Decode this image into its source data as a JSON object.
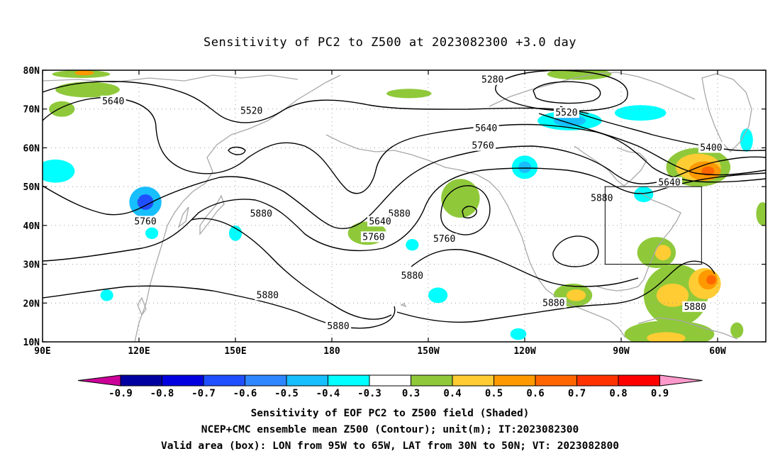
{
  "title": "Sensitivity of PC2 to Z500 at 2023082300 +3.0 day",
  "captions": [
    "Sensitivity of EOF PC2 to Z500 field (Shaded)",
    "NCEP+CMC ensemble mean Z500 (Contour); unit(m); IT:2023082300",
    "Valid area (box): LON from 95W to 65W, LAT from 30N to 50N; VT: 2023082800"
  ],
  "map": {
    "lon_range": [
      90,
      315
    ],
    "lat_range": [
      10,
      80
    ],
    "lat_ticks": [
      {
        "lat": 80,
        "label": "80N"
      },
      {
        "lat": 70,
        "label": "70N"
      },
      {
        "lat": 60,
        "label": "60N"
      },
      {
        "lat": 50,
        "label": "50N"
      },
      {
        "lat": 40,
        "label": "40N"
      },
      {
        "lat": 30,
        "label": "30N"
      },
      {
        "lat": 20,
        "label": "20N"
      },
      {
        "lat": 10,
        "label": "10N"
      }
    ],
    "lon_ticks": [
      {
        "lon": 90,
        "label": "90E"
      },
      {
        "lon": 120,
        "label": "120E"
      },
      {
        "lon": 150,
        "label": "150E"
      },
      {
        "lon": 180,
        "label": "180"
      },
      {
        "lon": 210,
        "label": "150W"
      },
      {
        "lon": 240,
        "label": "120W"
      },
      {
        "lon": 270,
        "label": "90W"
      },
      {
        "lon": 300,
        "label": "60W"
      }
    ],
    "valid_box": {
      "lon_min": 265,
      "lon_max": 295,
      "lat_min": 30,
      "lat_max": 50
    },
    "contour_labels": [
      {
        "text": "5640",
        "lon": 112,
        "lat": 72
      },
      {
        "text": "5520",
        "lon": 155,
        "lat": 69.5
      },
      {
        "text": "5520",
        "lon": 253,
        "lat": 69
      },
      {
        "text": "5280",
        "lon": 230,
        "lat": 77.5
      },
      {
        "text": "5640",
        "lon": 228,
        "lat": 65
      },
      {
        "text": "5760",
        "lon": 227,
        "lat": 60.5
      },
      {
        "text": "5400",
        "lon": 298,
        "lat": 60
      },
      {
        "text": "5640",
        "lon": 285,
        "lat": 51
      },
      {
        "text": "5880",
        "lon": 264,
        "lat": 47
      },
      {
        "text": "5880",
        "lon": 201,
        "lat": 43
      },
      {
        "text": "5640",
        "lon": 195,
        "lat": 41
      },
      {
        "text": "5760",
        "lon": 193,
        "lat": 37
      },
      {
        "text": "5760",
        "lon": 215,
        "lat": 36.5
      },
      {
        "text": "5880",
        "lon": 158,
        "lat": 43
      },
      {
        "text": "5760",
        "lon": 122,
        "lat": 41
      },
      {
        "text": "5880",
        "lon": 205,
        "lat": 27
      },
      {
        "text": "5880",
        "lon": 249,
        "lat": 20
      },
      {
        "text": "5880",
        "lon": 293,
        "lat": 19
      },
      {
        "text": "5880",
        "lon": 182,
        "lat": 14
      },
      {
        "text": "5880",
        "lon": 160,
        "lat": 22
      }
    ],
    "shading": [
      {
        "lon": 94,
        "lat": 54,
        "rx": 6,
        "ry": 3,
        "value": -0.4
      },
      {
        "lon": 122,
        "lat": 46,
        "rx": 5,
        "ry": 4,
        "value": -0.5
      },
      {
        "lon": 122,
        "lat": 46,
        "rx": 2.5,
        "ry": 2,
        "value": -0.7
      },
      {
        "lon": 124,
        "lat": 38,
        "rx": 2,
        "ry": 1.5,
        "value": -0.4
      },
      {
        "lon": 240,
        "lat": 55,
        "rx": 4,
        "ry": 3,
        "value": -0.4
      },
      {
        "lon": 240,
        "lat": 55,
        "rx": 2,
        "ry": 1.5,
        "value": -0.5
      },
      {
        "lon": 254,
        "lat": 67,
        "rx": 10,
        "ry": 2.5,
        "value": -0.4
      },
      {
        "lon": 254,
        "lat": 67,
        "rx": 5,
        "ry": 1.5,
        "value": -0.5
      },
      {
        "lon": 276,
        "lat": 69,
        "rx": 8,
        "ry": 2,
        "value": -0.4
      },
      {
        "lon": 309,
        "lat": 62,
        "rx": 2,
        "ry": 3,
        "value": -0.4
      },
      {
        "lon": 277,
        "lat": 48,
        "rx": 3,
        "ry": 2,
        "value": -0.4
      },
      {
        "lon": 205,
        "lat": 35,
        "rx": 2,
        "ry": 1.5,
        "value": -0.4
      },
      {
        "lon": 213,
        "lat": 22,
        "rx": 3,
        "ry": 2,
        "value": -0.4
      },
      {
        "lon": 110,
        "lat": 22,
        "rx": 2,
        "ry": 1.5,
        "value": -0.4
      },
      {
        "lon": 238,
        "lat": 12,
        "rx": 2.5,
        "ry": 1.5,
        "value": -0.4
      },
      {
        "lon": 150,
        "lat": 38,
        "rx": 2,
        "ry": 2,
        "value": -0.4
      },
      {
        "lon": 104,
        "lat": 75,
        "rx": 10,
        "ry": 2,
        "value": 0.3
      },
      {
        "lon": 96,
        "lat": 70,
        "rx": 4,
        "ry": 2,
        "value": 0.3
      },
      {
        "lon": 102,
        "lat": 79,
        "rx": 9,
        "ry": 1,
        "value": 0.3
      },
      {
        "lon": 103,
        "lat": 79.3,
        "rx": 3,
        "ry": 0.6,
        "value": 0.5
      },
      {
        "lon": 204,
        "lat": 74,
        "rx": 7,
        "ry": 1.2,
        "value": 0.3
      },
      {
        "lon": 220,
        "lat": 47,
        "rx": 6,
        "ry": 5,
        "value": 0.3
      },
      {
        "lon": 191,
        "lat": 38,
        "rx": 6,
        "ry": 3,
        "value": 0.3
      },
      {
        "lon": 257,
        "lat": 79,
        "rx": 10,
        "ry": 1.5,
        "value": 0.3
      },
      {
        "lon": 294,
        "lat": 55,
        "rx": 10,
        "ry": 5,
        "value": 0.3
      },
      {
        "lon": 294,
        "lat": 55,
        "rx": 7,
        "ry": 3.5,
        "value": 0.4
      },
      {
        "lon": 296,
        "lat": 54,
        "rx": 5,
        "ry": 2.5,
        "value": 0.5
      },
      {
        "lon": 297,
        "lat": 54,
        "rx": 2,
        "ry": 1.2,
        "value": 0.6
      },
      {
        "lon": 314,
        "lat": 43,
        "rx": 2,
        "ry": 3,
        "value": 0.3
      },
      {
        "lon": 281,
        "lat": 33,
        "rx": 6,
        "ry": 4,
        "value": 0.3
      },
      {
        "lon": 283,
        "lat": 33,
        "rx": 2.5,
        "ry": 2,
        "value": 0.4
      },
      {
        "lon": 287,
        "lat": 22,
        "rx": 10,
        "ry": 8,
        "value": 0.3
      },
      {
        "lon": 286,
        "lat": 22,
        "rx": 5,
        "ry": 3,
        "value": 0.4
      },
      {
        "lon": 296,
        "lat": 25,
        "rx": 5,
        "ry": 4,
        "value": 0.4
      },
      {
        "lon": 297,
        "lat": 26,
        "rx": 3,
        "ry": 2.5,
        "value": 0.5
      },
      {
        "lon": 298,
        "lat": 26,
        "rx": 1.5,
        "ry": 1.2,
        "value": 0.6
      },
      {
        "lon": 255,
        "lat": 22,
        "rx": 6,
        "ry": 3,
        "value": 0.3
      },
      {
        "lon": 256,
        "lat": 22,
        "rx": 3,
        "ry": 1.5,
        "value": 0.4
      },
      {
        "lon": 285,
        "lat": 12,
        "rx": 14,
        "ry": 3.5,
        "value": 0.3
      },
      {
        "lon": 284,
        "lat": 11,
        "rx": 6,
        "ry": 1.5,
        "value": 0.4
      },
      {
        "lon": 306,
        "lat": 13,
        "rx": 2,
        "ry": 2,
        "value": 0.3
      }
    ]
  },
  "colorbar": {
    "labels": [
      "-0.9",
      "-0.8",
      "-0.7",
      "-0.6",
      "-0.5",
      "-0.4",
      "-0.3",
      "0.3",
      "0.4",
      "0.5",
      "0.6",
      "0.7",
      "0.8",
      "0.9"
    ],
    "colors": [
      "#0000a0",
      "#0000e0",
      "#1f4fff",
      "#2f87ff",
      "#17bfff",
      "#00ffff",
      "#ffffff",
      "#8fc93a",
      "#ffcc33",
      "#ff9900",
      "#ff6600",
      "#ff3300",
      "#ff0000"
    ],
    "low_end_color": "#cc0099",
    "high_end_color": "#ff99cc"
  },
  "level_colors": {
    "-0.7": "#1f4fff",
    "-0.5": "#17bfff",
    "-0.4": "#00ffff",
    "0.3": "#8fc93a",
    "0.4": "#ffcc33",
    "0.5": "#ff9900",
    "0.6": "#ff6600"
  },
  "colors": {
    "contour": "#000000",
    "coast": "#a8a8a8",
    "grid": "#999999",
    "box": "#000000"
  }
}
